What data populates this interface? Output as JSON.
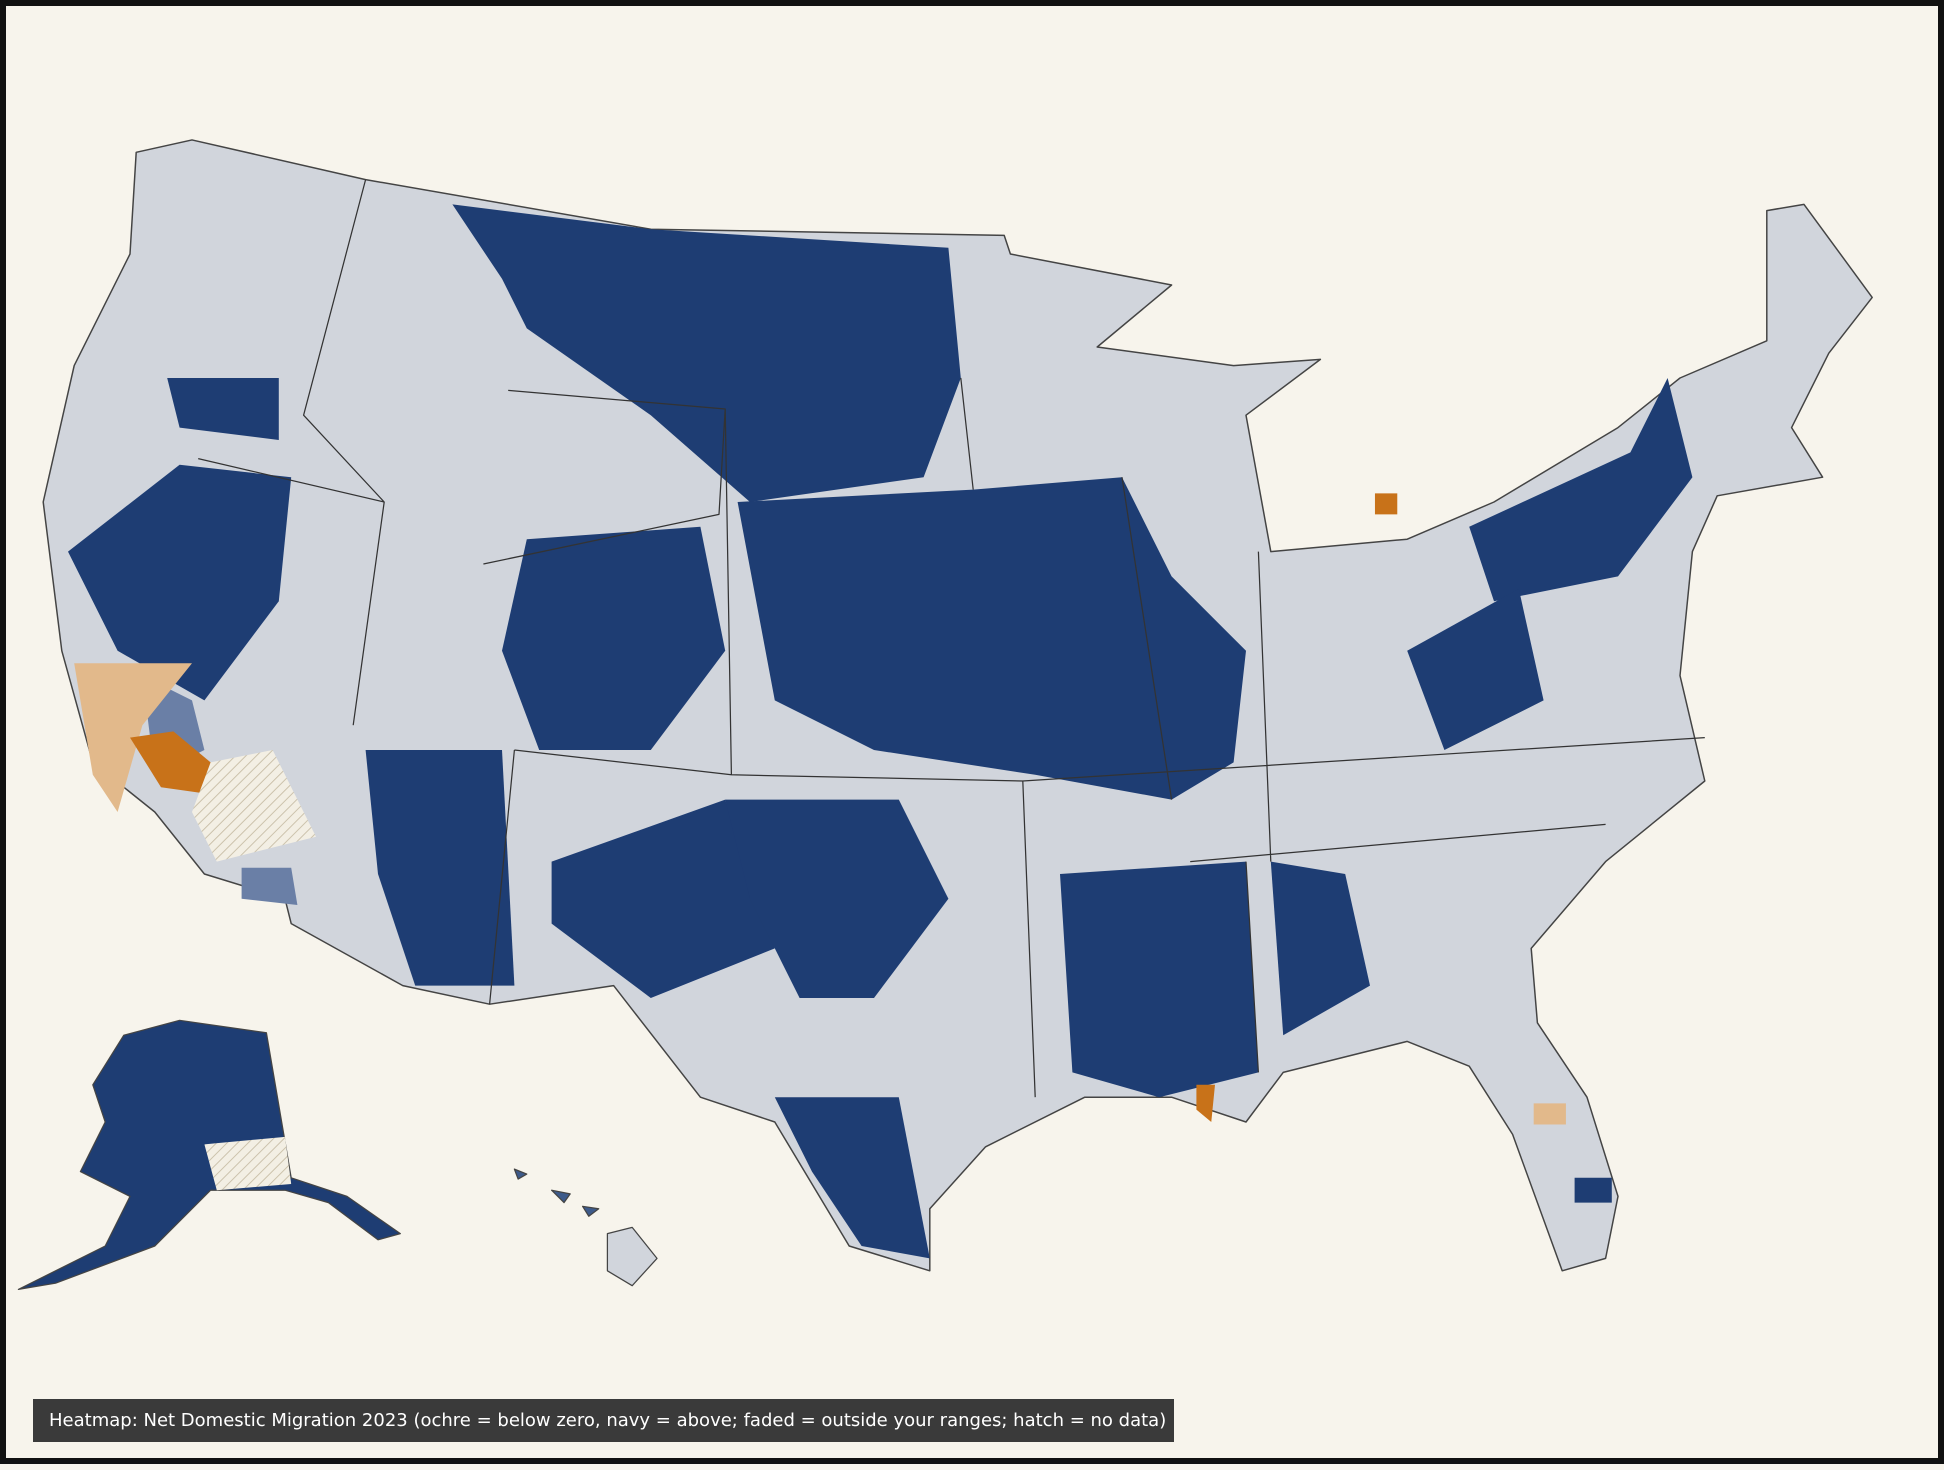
{
  "caption": "Heatmap: Net Domestic Migration 2023 (ochre = below zero, navy = above; faded = outside your ranges; hatch = no data)"
}
